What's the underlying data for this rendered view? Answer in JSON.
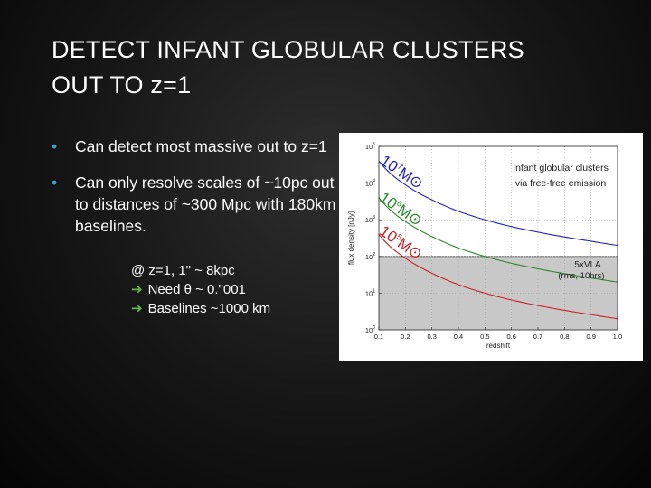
{
  "slide": {
    "title_lines": [
      "DETECT INFANT GLOBULAR CLUSTERS",
      "OUT TO z=1"
    ],
    "bullets": [
      "Can detect most massive out to z=1",
      "Can only resolve scales of ~10pc out to distances of ~300 Mpc with 180km baselines."
    ],
    "bullet_marker": "•",
    "sub_lines": [
      "@ z=1, 1\" ~ 8kpc",
      "Need θ ~ 0.\"001",
      "Baselines ~1000 km"
    ],
    "arrow_glyph": "➔"
  },
  "colors": {
    "bullet": "#3aa0d8",
    "arrow": "#63b93b",
    "mass_1e7": "#2222c8",
    "mass_1e6": "#2a8a2a",
    "mass_1e5": "#cc2222",
    "shade": "#c8c8c8"
  },
  "chart_data": {
    "type": "line",
    "xlabel": "redshift",
    "ylabel": "flux density [nJy]",
    "xlim": [
      0.1,
      1.0
    ],
    "ylim": [
      1,
      100000
    ],
    "yscale": "log",
    "xticks": [
      "0.1",
      "0.2",
      "0.3",
      "0.4",
      "0.5",
      "0.6",
      "0.7",
      "0.8",
      "0.9",
      "1.0"
    ],
    "yticks": [
      {
        "base": "10",
        "exp": "0"
      },
      {
        "base": "10",
        "exp": "1"
      },
      {
        "base": "10",
        "exp": "2"
      },
      {
        "base": "10",
        "exp": "3"
      },
      {
        "base": "10",
        "exp": "4"
      },
      {
        "base": "10",
        "exp": "5"
      }
    ],
    "x": [
      0.1,
      0.2,
      0.3,
      0.4,
      0.5,
      0.6,
      0.7,
      0.8,
      0.9,
      1.0
    ],
    "series": [
      {
        "name": "10⁷M⊙",
        "color": "#2222c8",
        "values": [
          40000,
          9000,
          3500,
          1700,
          1000,
          650,
          460,
          340,
          260,
          200
        ]
      },
      {
        "name": "10⁶M⊙",
        "color": "#2a8a2a",
        "values": [
          4000,
          900,
          350,
          170,
          100,
          65,
          46,
          34,
          26,
          20
        ]
      },
      {
        "name": "10⁵M⊙",
        "color": "#cc2222",
        "values": [
          400,
          90,
          35,
          17,
          10,
          6.5,
          4.6,
          3.4,
          2.6,
          2.0
        ]
      }
    ],
    "mass_labels": [
      {
        "base": "10",
        "exp": "7",
        "suffix": "M⊙"
      },
      {
        "base": "10",
        "exp": "6",
        "suffix": "M⊙"
      },
      {
        "base": "10",
        "exp": "5",
        "suffix": "M⊙"
      }
    ],
    "threshold": {
      "value": 100,
      "label": "5xVLA",
      "sublabel": "(rms, 10hrs)"
    },
    "annotation": [
      "Infant globular clusters",
      "via free-free emission"
    ]
  }
}
